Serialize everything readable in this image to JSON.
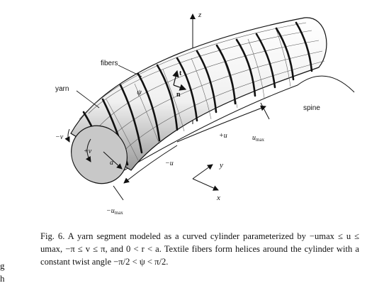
{
  "figure": {
    "labels": {
      "z": "z",
      "fibers": "fibers",
      "yarn": "yarn",
      "t": "t",
      "n": "n",
      "psi": "ψ",
      "spine": "spine",
      "u_max": "u",
      "u_max_sub": "max",
      "plus_u": "+u",
      "y": "y",
      "x": "x",
      "minus_u": "−u",
      "minus_u_max": "−u",
      "minus_u_max_sub": "max",
      "minus_v": "−v",
      "plus_v": "+v",
      "a": "a"
    }
  },
  "caption": {
    "fig_label": "Fig. 6.",
    "text": "A yarn segment modeled as a curved cylinder parameterized by −umax ≤ u ≤ umax, −π ≤ v ≤ π, and 0 < r < a. Textile fibers form helices around the cylinder with a constant twist angle −π/2 < ψ < π/2."
  },
  "margin_fragments": [
    "g",
    "h"
  ]
}
